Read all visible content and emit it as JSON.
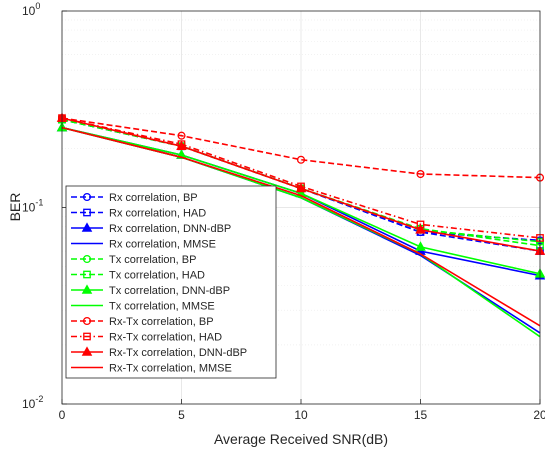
{
  "chart_data": {
    "type": "line",
    "title": "",
    "xlabel": "Average Received SNR(dB)",
    "ylabel": "BER",
    "x": [
      0,
      5,
      10,
      15,
      20
    ],
    "xlim": [
      0,
      20
    ],
    "ylim": [
      0.01,
      1
    ],
    "yscale": "log",
    "xticks": [
      0,
      5,
      10,
      15,
      20
    ],
    "xtick_labels": [
      "0",
      "5",
      "10",
      "15",
      "20"
    ],
    "ytick_labels": [
      {
        "base": "10",
        "exp": "0",
        "value": 1
      },
      {
        "base": "10",
        "exp": "-1",
        "value": 0.1
      },
      {
        "base": "10",
        "exp": "-2",
        "value": 0.01
      }
    ],
    "grid": true,
    "legend_position": "lower-left",
    "series": [
      {
        "name": "Rx correlation, BP",
        "color": "#0000ff",
        "line": "dashed",
        "marker": "circle",
        "values": [
          0.28,
          0.205,
          0.125,
          0.075,
          0.068
        ]
      },
      {
        "name": "Rx correlation, HAD",
        "color": "#0000ff",
        "line": "dashed",
        "marker": "square",
        "values": [
          0.28,
          0.205,
          0.125,
          0.075,
          0.06
        ]
      },
      {
        "name": "Rx correlation, DNN-dBP",
        "color": "#0000ff",
        "line": "solid",
        "marker": "triangle",
        "values": [
          0.255,
          0.185,
          0.118,
          0.06,
          0.045
        ]
      },
      {
        "name": "Rx correlation, MMSE",
        "color": "#0000ff",
        "line": "solid",
        "marker": "none",
        "values": [
          0.255,
          0.18,
          0.112,
          0.057,
          0.023
        ]
      },
      {
        "name": "Tx correlation, BP",
        "color": "#00ff00",
        "line": "dashed",
        "marker": "circle",
        "values": [
          0.28,
          0.205,
          0.125,
          0.077,
          0.067
        ]
      },
      {
        "name": "Tx correlation, HAD",
        "color": "#00ff00",
        "line": "dashed",
        "marker": "square",
        "values": [
          0.28,
          0.205,
          0.125,
          0.078,
          0.064
        ]
      },
      {
        "name": "Tx correlation, DNN-dBP",
        "color": "#00ff00",
        "line": "solid",
        "marker": "triangle",
        "values": [
          0.255,
          0.185,
          0.118,
          0.063,
          0.046
        ]
      },
      {
        "name": "Tx correlation, MMSE",
        "color": "#00ff00",
        "line": "solid",
        "marker": "none",
        "values": [
          0.255,
          0.18,
          0.112,
          0.058,
          0.022
        ]
      },
      {
        "name": "Rx-Tx correlation, BP",
        "color": "#ff0000",
        "line": "dashed",
        "marker": "circle",
        "values": [
          0.285,
          0.232,
          0.175,
          0.148,
          0.142
        ]
      },
      {
        "name": "Rx-Tx correlation, HAD",
        "color": "#ff0000",
        "line": "dashdot",
        "marker": "square",
        "values": [
          0.285,
          0.21,
          0.128,
          0.082,
          0.07
        ]
      },
      {
        "name": "Rx-Tx correlation, DNN-dBP",
        "color": "#ff0000",
        "line": "solid",
        "marker": "triangle",
        "values": [
          0.285,
          0.205,
          0.125,
          0.077,
          0.06
        ]
      },
      {
        "name": "Rx-Tx correlation, MMSE",
        "color": "#ff0000",
        "line": "solid",
        "marker": "none",
        "values": [
          0.255,
          0.18,
          0.115,
          0.058,
          0.025
        ]
      }
    ]
  }
}
